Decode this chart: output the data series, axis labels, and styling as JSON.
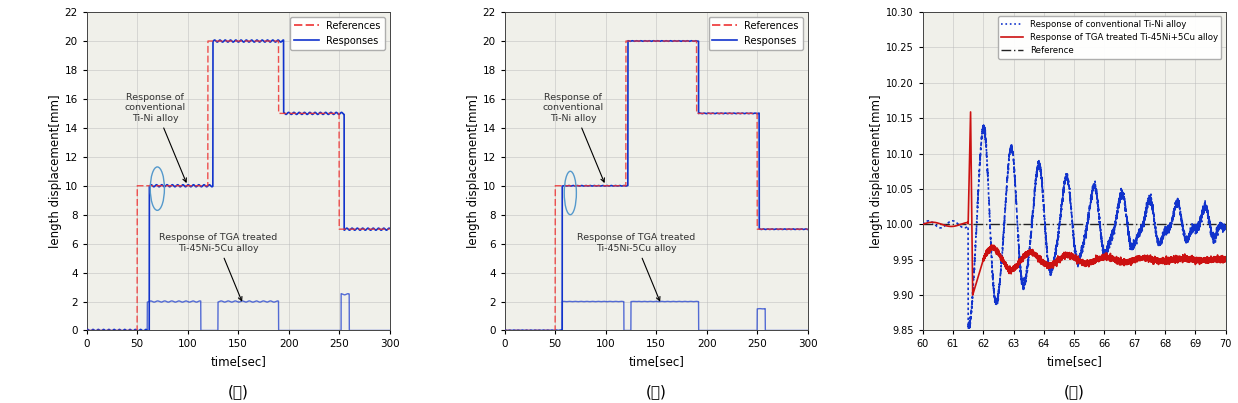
{
  "fig_width": 12.38,
  "fig_height": 4.03,
  "dpi": 100,
  "subplot_labels": [
    "(가)",
    "(나)",
    "(다)"
  ],
  "panel_ab": {
    "xlabel": "time[sec]",
    "ylabel": "length displacement[mm]",
    "xlim": [
      0,
      300
    ],
    "ylim": [
      0,
      22
    ],
    "xticks": [
      0,
      50,
      100,
      150,
      200,
      250,
      300
    ],
    "yticks": [
      0,
      2,
      4,
      6,
      8,
      10,
      12,
      14,
      16,
      18,
      20,
      22
    ],
    "ref_color": "#ee3333",
    "resp_color": "#1133cc",
    "legend_entries": [
      "References",
      "Responses"
    ]
  },
  "panel_c": {
    "xlabel": "time[sec]",
    "ylabel": "length displacement[mm]",
    "xlim": [
      60,
      70
    ],
    "ylim": [
      9.85,
      10.3
    ],
    "xticks": [
      60,
      61,
      62,
      63,
      64,
      65,
      66,
      67,
      68,
      69,
      70
    ],
    "yticks": [
      9.85,
      9.9,
      9.95,
      10.0,
      10.05,
      10.1,
      10.15,
      10.2,
      10.25,
      10.3
    ],
    "ref_value": 10.0,
    "ref_color": "#222222",
    "conv_color": "#1133cc",
    "tga_color": "#cc1111",
    "legend_entries": [
      "Response of conventional Ti-Ni alloy",
      "Response of TGA treated Ti-45Ni+5Cu alloy",
      "Reference"
    ]
  },
  "bg_color": "#f0f0ea",
  "grid_color": "#bbbbbb",
  "grid_alpha": 0.7
}
